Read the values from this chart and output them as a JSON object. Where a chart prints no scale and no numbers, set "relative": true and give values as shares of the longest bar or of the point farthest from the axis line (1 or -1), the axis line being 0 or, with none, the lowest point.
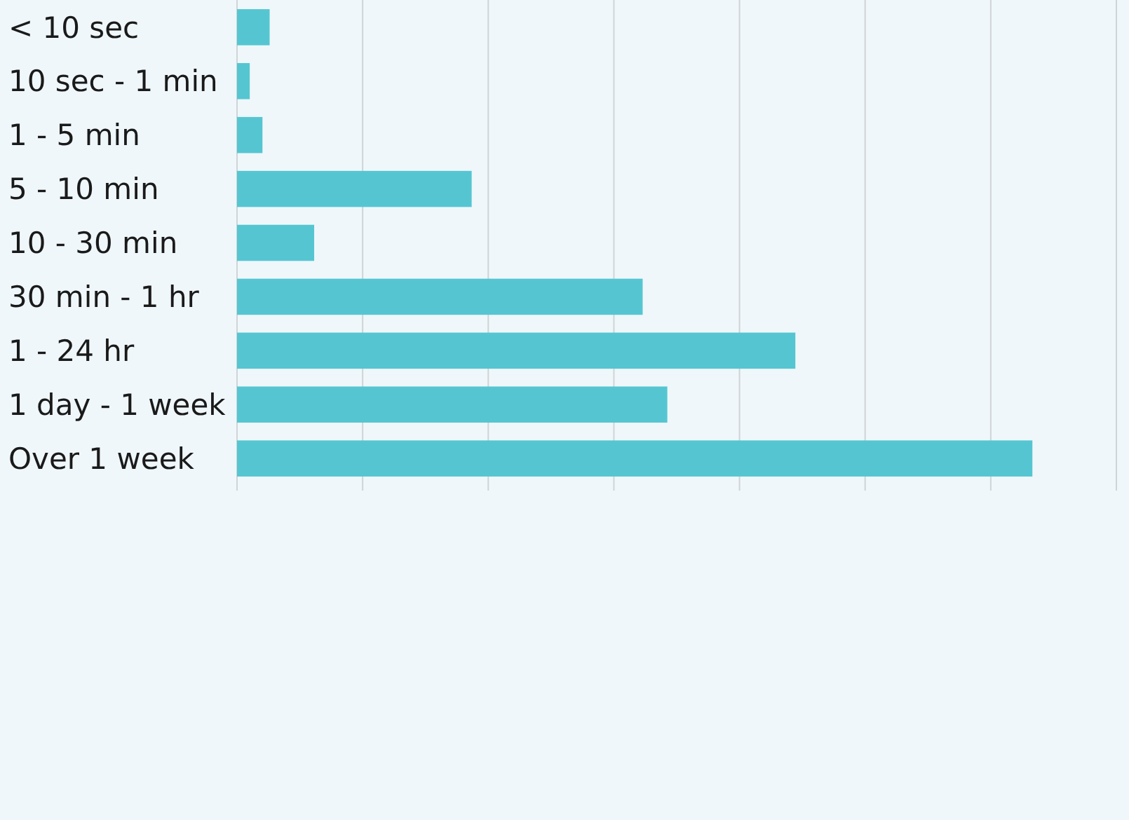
{
  "chart_data": {
    "type": "bar",
    "orientation": "horizontal",
    "relative": true,
    "categories": [
      "< 10 sec",
      "10 sec - 1 min",
      "1 - 5 min",
      "5 - 10 min",
      "10 - 30 min",
      "30 min - 1 hr",
      "1 - 24 hr",
      "1 day - 1 week",
      "Over 1 week"
    ],
    "values": [
      0.041,
      0.016,
      0.032,
      0.295,
      0.097,
      0.51,
      0.702,
      0.541,
      1
    ],
    "color": "#55c6d1",
    "grid": "x"
  }
}
